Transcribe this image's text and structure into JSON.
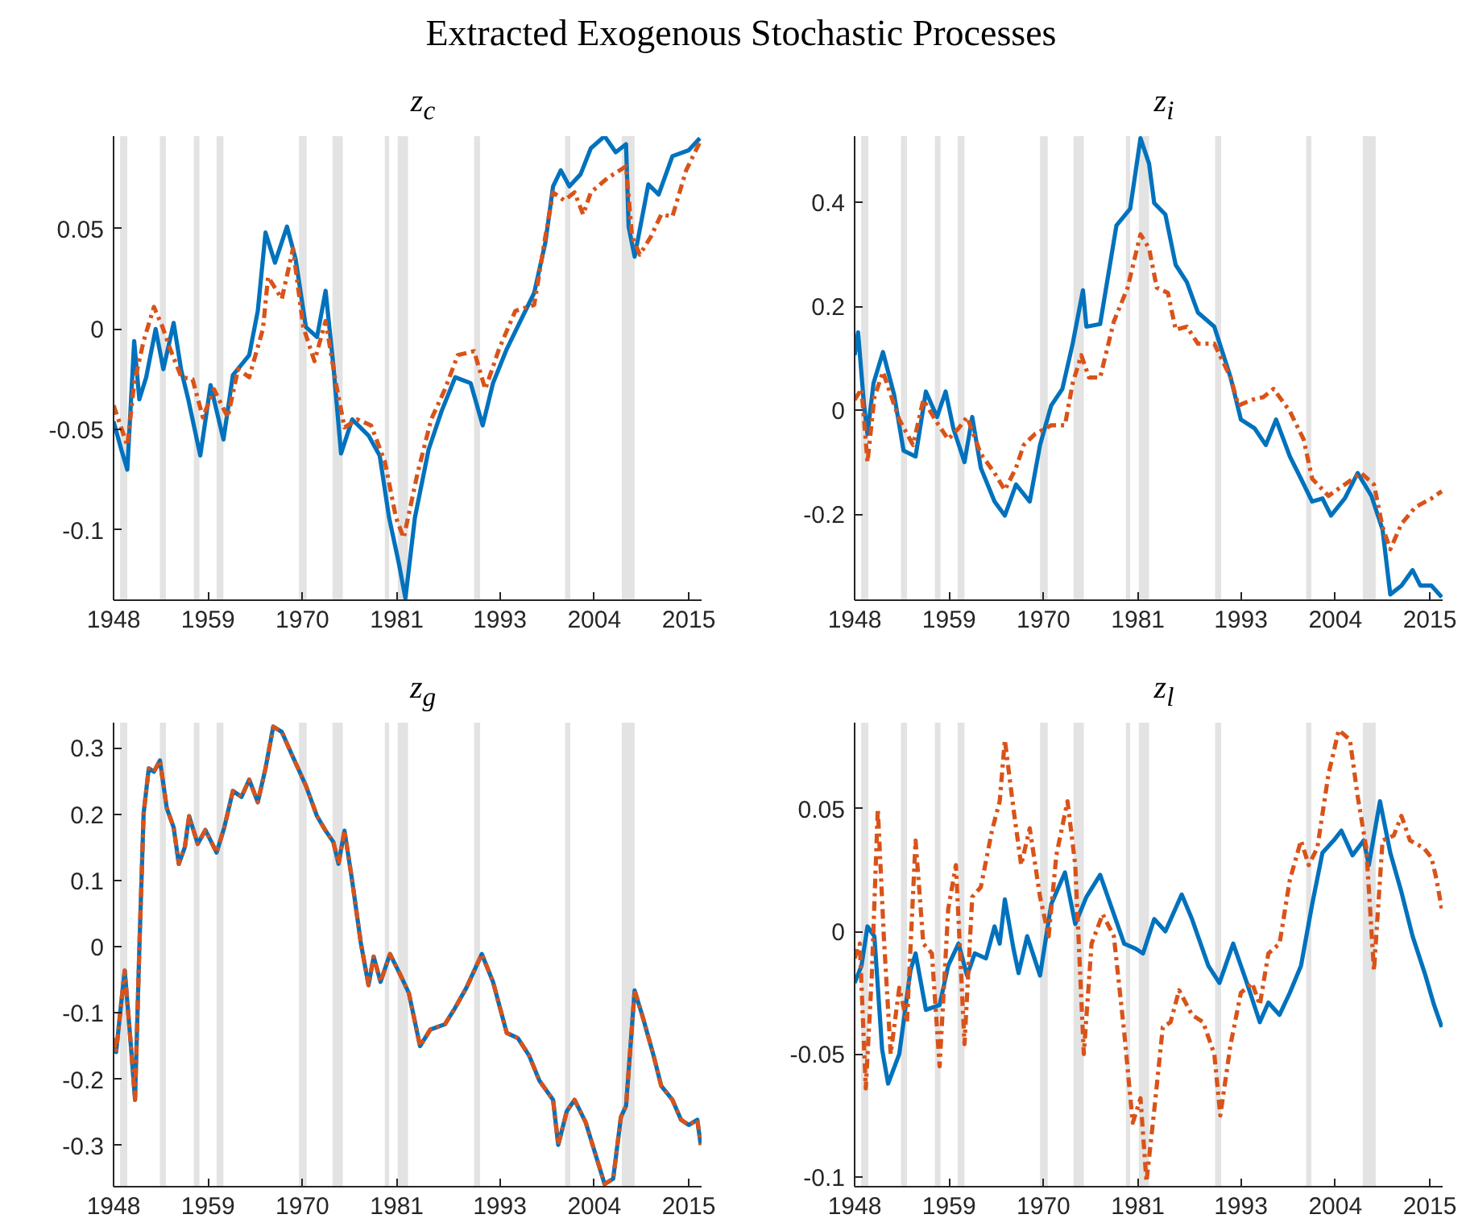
{
  "chart_data": [
    {
      "type": "line",
      "title": "z$_{c}$",
      "annotations": [
        "Extracted Exogenous Stochastic Processes"
      ],
      "xlim": [
        1948,
        2016.5
      ],
      "xticks": [
        1948,
        1959,
        1970,
        1981,
        1993,
        2004,
        2015
      ],
      "ylim": [
        -0.135,
        0.096
      ],
      "yticks": [
        -0.1,
        -0.05,
        0,
        0.05
      ],
      "grid": false,
      "marker": "none",
      "bands": [
        {
          "axis": "x",
          "from": 1948.76,
          "to": 1949.6,
          "color": "#e3e3e3"
        },
        {
          "axis": "x",
          "from": 1953.4,
          "to": 1954.1,
          "color": "#e3e3e3"
        },
        {
          "axis": "x",
          "from": 1957.35,
          "to": 1958.0,
          "color": "#e3e3e3"
        },
        {
          "axis": "x",
          "from": 1960.0,
          "to": 1960.8,
          "color": "#e3e3e3"
        },
        {
          "axis": "x",
          "from": 1969.6,
          "to": 1970.5,
          "color": "#e3e3e3"
        },
        {
          "axis": "x",
          "from": 1973.5,
          "to": 1974.7,
          "color": "#e3e3e3"
        },
        {
          "axis": "x",
          "from": 1979.6,
          "to": 1980.1,
          "color": "#e3e3e3"
        },
        {
          "axis": "x",
          "from": 1981.1,
          "to": 1982.3,
          "color": "#e3e3e3"
        },
        {
          "axis": "x",
          "from": 1990.0,
          "to": 1990.7,
          "color": "#e3e3e3"
        },
        {
          "axis": "x",
          "from": 2000.6,
          "to": 2001.2,
          "color": "#e3e3e3"
        },
        {
          "axis": "x",
          "from": 2007.2,
          "to": 2008.7,
          "color": "#e3e3e3"
        }
      ],
      "series": [
        {
          "color": "#0072bd",
          "line_style": "solid",
          "x": [
            1948,
            1948.9,
            1949.6,
            1950.4,
            1951.0,
            1951.8,
            1952.9,
            1953.8,
            1955.0,
            1955.9,
            1956.7,
            1958.1,
            1959.3,
            1960.8,
            1961.9,
            1963.8,
            1964.8,
            1965.7,
            1966.8,
            1968.2,
            1969.2,
            1970.4,
            1971.7,
            1972.7,
            1973.6,
            1974.5,
            1975.8,
            1977.7,
            1979.0,
            1980.1,
            1981.2,
            1982.0,
            1983.1,
            1984.7,
            1986.2,
            1987.8,
            1989.6,
            1991.0,
            1992.2,
            1993.8,
            1995.4,
            1997.0,
            1998.3,
            1999.2,
            2000.1,
            2001.1,
            2002.4,
            2003.6,
            2005.2,
            2006.5,
            2007.7,
            2008.0,
            2008.7,
            2010.3,
            2011.5,
            2013.1,
            2015.0,
            2016.3
          ],
          "values": [
            -0.046,
            -0.06,
            -0.07,
            -0.006,
            -0.035,
            -0.024,
            0.0,
            -0.02,
            0.003,
            -0.021,
            -0.035,
            -0.063,
            -0.028,
            -0.055,
            -0.023,
            -0.013,
            0.009,
            0.048,
            0.033,
            0.051,
            0.035,
            0.001,
            -0.004,
            0.019,
            -0.018,
            -0.062,
            -0.045,
            -0.053,
            -0.063,
            -0.094,
            -0.116,
            -0.134,
            -0.094,
            -0.06,
            -0.041,
            -0.024,
            -0.027,
            -0.048,
            -0.027,
            -0.01,
            0.004,
            0.018,
            0.043,
            0.071,
            0.079,
            0.071,
            0.077,
            0.09,
            0.096,
            0.088,
            0.092,
            0.051,
            0.036,
            0.072,
            0.067,
            0.086,
            0.089,
            0.095
          ]
        },
        {
          "color": "#d95319",
          "line_style": "dashed",
          "x": [
            1948,
            1949.6,
            1950.4,
            1951.5,
            1952.7,
            1953.7,
            1954.6,
            1955.9,
            1957.2,
            1958.4,
            1959.7,
            1961.3,
            1962.5,
            1963.8,
            1965.4,
            1966.0,
            1967.6,
            1968.9,
            1970.1,
            1971.4,
            1972.7,
            1973.9,
            1974.9,
            1976.4,
            1978.0,
            1979.6,
            1980.9,
            1981.8,
            1983.4,
            1985.0,
            1986.6,
            1988.1,
            1990.0,
            1991.3,
            1992.9,
            1994.8,
            1997.0,
            1998.3,
            1999.2,
            2000.5,
            2001.7,
            2002.7,
            2003.6,
            2005.5,
            2007.7,
            2008.4,
            2009.3,
            2010.6,
            2011.8,
            2013.1,
            2014.7,
            2016.3
          ],
          "values": [
            -0.038,
            -0.058,
            -0.027,
            -0.006,
            0.011,
            0.001,
            -0.01,
            -0.024,
            -0.025,
            -0.044,
            -0.03,
            -0.044,
            -0.02,
            -0.024,
            0.0,
            0.026,
            0.015,
            0.04,
            0.001,
            -0.016,
            0.004,
            -0.027,
            -0.049,
            -0.045,
            -0.048,
            -0.066,
            -0.094,
            -0.104,
            -0.072,
            -0.045,
            -0.03,
            -0.013,
            -0.011,
            -0.03,
            -0.01,
            0.009,
            0.012,
            0.046,
            0.068,
            0.064,
            0.068,
            0.057,
            0.068,
            0.075,
            0.081,
            0.046,
            0.037,
            0.046,
            0.057,
            0.056,
            0.079,
            0.093
          ]
        }
      ]
    },
    {
      "type": "line",
      "title": "z$_{i}$",
      "xlim": [
        1948,
        2016.5
      ],
      "xticks": [
        1948,
        1959,
        1970,
        1981,
        1993,
        2004,
        2015
      ],
      "ylim": [
        -0.366,
        0.528
      ],
      "yticks": [
        -0.2,
        0,
        0.2,
        0.4
      ],
      "grid": false,
      "marker": "none",
      "bands": [
        {
          "axis": "x",
          "from": 1948.76,
          "to": 1949.6,
          "color": "#e3e3e3"
        },
        {
          "axis": "x",
          "from": 1953.4,
          "to": 1954.1,
          "color": "#e3e3e3"
        },
        {
          "axis": "x",
          "from": 1957.35,
          "to": 1958.0,
          "color": "#e3e3e3"
        },
        {
          "axis": "x",
          "from": 1960.0,
          "to": 1960.8,
          "color": "#e3e3e3"
        },
        {
          "axis": "x",
          "from": 1969.6,
          "to": 1970.5,
          "color": "#e3e3e3"
        },
        {
          "axis": "x",
          "from": 1973.5,
          "to": 1974.7,
          "color": "#e3e3e3"
        },
        {
          "axis": "x",
          "from": 1979.6,
          "to": 1980.1,
          "color": "#e3e3e3"
        },
        {
          "axis": "x",
          "from": 1981.1,
          "to": 1982.3,
          "color": "#e3e3e3"
        },
        {
          "axis": "x",
          "from": 1990.0,
          "to": 1990.7,
          "color": "#e3e3e3"
        },
        {
          "axis": "x",
          "from": 2000.6,
          "to": 2001.2,
          "color": "#e3e3e3"
        },
        {
          "axis": "x",
          "from": 2007.2,
          "to": 2008.7,
          "color": "#e3e3e3"
        }
      ],
      "series": [
        {
          "color": "#0072bd",
          "line_style": "solid",
          "x": [
            1948,
            1948.4,
            1949.1,
            1949.5,
            1950.2,
            1951.3,
            1952.6,
            1953.7,
            1955.1,
            1956.3,
            1957.6,
            1958.6,
            1959.5,
            1960.8,
            1961.7,
            1962.7,
            1964.3,
            1965.5,
            1966.8,
            1968.4,
            1969.6,
            1970.9,
            1972.2,
            1973.4,
            1974.6,
            1975.0,
            1976.6,
            1978.5,
            1980.1,
            1981.3,
            1982.3,
            1982.9,
            1984.2,
            1985.4,
            1986.7,
            1988.0,
            1989.9,
            1991.8,
            1993.0,
            1994.6,
            1995.9,
            1997.1,
            1998.7,
            2000.0,
            2001.3,
            2002.5,
            2003.5,
            2005.1,
            2006.6,
            2008.2,
            2009.5,
            2010.4,
            2011.7,
            2013.0,
            2013.9,
            2015.2,
            2016.4
          ],
          "values": [
            0.106,
            0.15,
            0.009,
            -0.046,
            0.052,
            0.112,
            0.03,
            -0.078,
            -0.089,
            0.036,
            -0.013,
            0.036,
            -0.035,
            -0.1,
            -0.013,
            -0.111,
            -0.176,
            -0.203,
            -0.143,
            -0.176,
            -0.067,
            0.009,
            0.041,
            0.128,
            0.231,
            0.161,
            0.166,
            0.356,
            0.388,
            0.524,
            0.475,
            0.399,
            0.377,
            0.28,
            0.247,
            0.188,
            0.161,
            0.063,
            -0.018,
            -0.035,
            -0.067,
            -0.018,
            -0.089,
            -0.132,
            -0.176,
            -0.17,
            -0.203,
            -0.17,
            -0.121,
            -0.165,
            -0.23,
            -0.355,
            -0.338,
            -0.308,
            -0.338,
            -0.338,
            -0.36
          ]
        },
        {
          "color": "#d95319",
          "line_style": "dashed",
          "x": [
            1948,
            1948.8,
            1949.5,
            1950.3,
            1951.3,
            1952.2,
            1953.2,
            1954.8,
            1956.0,
            1957.6,
            1958.9,
            1960.1,
            1961.1,
            1962.7,
            1964.3,
            1965.5,
            1966.8,
            1967.7,
            1969.0,
            1970.9,
            1972.5,
            1973.4,
            1974.4,
            1975.3,
            1976.6,
            1978.2,
            1979.8,
            1981.3,
            1982.3,
            1983.2,
            1984.5,
            1985.4,
            1986.7,
            1988.0,
            1989.9,
            1991.8,
            1992.7,
            1994.3,
            1995.6,
            1996.8,
            1998.7,
            2000.3,
            2001.3,
            2003.2,
            2005.1,
            2007.0,
            2008.5,
            2009.5,
            2010.4,
            2011.7,
            2013.3,
            2015.2,
            2016.4
          ],
          "values": [
            0.02,
            0.041,
            -0.1,
            0.025,
            0.074,
            0.03,
            -0.018,
            -0.067,
            0.02,
            -0.024,
            -0.056,
            -0.035,
            -0.013,
            -0.084,
            -0.121,
            -0.154,
            -0.111,
            -0.067,
            -0.046,
            -0.029,
            -0.029,
            0.052,
            0.106,
            0.063,
            0.063,
            0.171,
            0.236,
            0.339,
            0.312,
            0.236,
            0.226,
            0.155,
            0.161,
            0.128,
            0.128,
            0.063,
            0.009,
            0.02,
            0.025,
            0.041,
            -0.002,
            -0.056,
            -0.132,
            -0.165,
            -0.143,
            -0.121,
            -0.143,
            -0.225,
            -0.268,
            -0.219,
            -0.187,
            -0.17,
            -0.156
          ]
        }
      ]
    },
    {
      "type": "line",
      "title": "z$_{g}$",
      "xlim": [
        1948,
        2016.5
      ],
      "xticks": [
        1948,
        1959,
        1970,
        1981,
        1993,
        2004,
        2015
      ],
      "ylim": [
        -0.362,
        0.338
      ],
      "yticks": [
        -0.3,
        -0.2,
        -0.1,
        0,
        0.1,
        0.2,
        0.3
      ],
      "grid": false,
      "marker": "none",
      "bands": [
        {
          "axis": "x",
          "from": 1948.76,
          "to": 1949.6,
          "color": "#e3e3e3"
        },
        {
          "axis": "x",
          "from": 1953.4,
          "to": 1954.1,
          "color": "#e3e3e3"
        },
        {
          "axis": "x",
          "from": 1957.35,
          "to": 1958.0,
          "color": "#e3e3e3"
        },
        {
          "axis": "x",
          "from": 1960.0,
          "to": 1960.8,
          "color": "#e3e3e3"
        },
        {
          "axis": "x",
          "from": 1969.6,
          "to": 1970.5,
          "color": "#e3e3e3"
        },
        {
          "axis": "x",
          "from": 1973.5,
          "to": 1974.7,
          "color": "#e3e3e3"
        },
        {
          "axis": "x",
          "from": 1979.6,
          "to": 1980.1,
          "color": "#e3e3e3"
        },
        {
          "axis": "x",
          "from": 1981.1,
          "to": 1982.3,
          "color": "#e3e3e3"
        },
        {
          "axis": "x",
          "from": 1990.0,
          "to": 1990.7,
          "color": "#e3e3e3"
        },
        {
          "axis": "x",
          "from": 2000.6,
          "to": 2001.2,
          "color": "#e3e3e3"
        },
        {
          "axis": "x",
          "from": 2007.2,
          "to": 2008.7,
          "color": "#e3e3e3"
        }
      ],
      "series": [
        {
          "color": "#0072bd",
          "line_style": "solid",
          "x": [
            1948,
            1948.3,
            1948.8,
            1949.3,
            1949.9,
            1950.5,
            1951.0,
            1951.5,
            1952.1,
            1952.7,
            1953.4,
            1954.2,
            1955.0,
            1955.6,
            1956.3,
            1956.8,
            1957.8,
            1958.7,
            1960.0,
            1960.9,
            1961.9,
            1962.9,
            1963.8,
            1964.8,
            1965.7,
            1966.6,
            1967.6,
            1968.9,
            1970.4,
            1971.7,
            1972.7,
            1973.6,
            1974.2,
            1974.9,
            1975.8,
            1976.8,
            1977.7,
            1978.3,
            1979.1,
            1980.2,
            1981.5,
            1982.4,
            1983.7,
            1984.9,
            1986.6,
            1987.8,
            1989.1,
            1990.9,
            1992.2,
            1993.8,
            1995.1,
            1996.4,
            1997.6,
            1999.2,
            1999.8,
            2000.8,
            2001.7,
            2003.0,
            2004.3,
            2005.2,
            2006.2,
            2007.1,
            2007.7,
            2008.7,
            2009.6,
            2010.9,
            2011.8,
            2013.1,
            2014.1,
            2015.0,
            2016.0,
            2016.4
          ],
          "values": [
            -0.138,
            -0.159,
            -0.096,
            -0.036,
            -0.13,
            -0.231,
            -0.003,
            0.201,
            0.269,
            0.264,
            0.281,
            0.209,
            0.18,
            0.125,
            0.15,
            0.197,
            0.155,
            0.176,
            0.142,
            0.18,
            0.235,
            0.226,
            0.252,
            0.218,
            0.269,
            0.332,
            0.324,
            0.286,
            0.243,
            0.197,
            0.175,
            0.158,
            0.125,
            0.175,
            0.099,
            0.006,
            -0.058,
            -0.015,
            -0.053,
            -0.011,
            -0.045,
            -0.07,
            -0.15,
            -0.125,
            -0.117,
            -0.092,
            -0.062,
            -0.011,
            -0.053,
            -0.13,
            -0.138,
            -0.164,
            -0.202,
            -0.231,
            -0.299,
            -0.248,
            -0.231,
            -0.265,
            -0.32,
            -0.358,
            -0.35,
            -0.257,
            -0.24,
            -0.066,
            -0.104,
            -0.164,
            -0.21,
            -0.231,
            -0.261,
            -0.269,
            -0.261,
            -0.299
          ]
        },
        {
          "color": "#d95319",
          "line_style": "dashed",
          "x": [
            1948,
            1948.3,
            1948.8,
            1949.3,
            1949.9,
            1950.5,
            1951.0,
            1951.5,
            1952.1,
            1952.7,
            1953.4,
            1954.2,
            1955.0,
            1955.6,
            1956.3,
            1956.8,
            1957.8,
            1958.7,
            1960.0,
            1960.9,
            1961.9,
            1962.9,
            1963.8,
            1964.8,
            1965.7,
            1966.6,
            1967.6,
            1968.9,
            1970.4,
            1971.7,
            1972.7,
            1973.6,
            1974.2,
            1974.9,
            1975.8,
            1976.8,
            1977.7,
            1978.3,
            1979.1,
            1980.2,
            1981.5,
            1982.4,
            1983.7,
            1984.9,
            1986.6,
            1987.8,
            1989.1,
            1990.9,
            1992.2,
            1993.8,
            1995.1,
            1996.4,
            1997.6,
            1999.2,
            1999.8,
            2000.8,
            2001.7,
            2003.0,
            2004.3,
            2005.2,
            2006.2,
            2007.1,
            2007.7,
            2008.7,
            2009.6,
            2010.9,
            2011.8,
            2013.1,
            2014.1,
            2015.0,
            2016.0,
            2016.4
          ],
          "values": [
            -0.138,
            -0.159,
            -0.096,
            -0.036,
            -0.13,
            -0.231,
            -0.003,
            0.201,
            0.269,
            0.264,
            0.281,
            0.209,
            0.18,
            0.125,
            0.15,
            0.197,
            0.155,
            0.176,
            0.142,
            0.18,
            0.235,
            0.226,
            0.252,
            0.218,
            0.269,
            0.332,
            0.324,
            0.286,
            0.243,
            0.197,
            0.175,
            0.158,
            0.125,
            0.175,
            0.099,
            0.006,
            -0.058,
            -0.015,
            -0.053,
            -0.011,
            -0.045,
            -0.07,
            -0.15,
            -0.125,
            -0.117,
            -0.092,
            -0.062,
            -0.011,
            -0.053,
            -0.13,
            -0.138,
            -0.164,
            -0.202,
            -0.231,
            -0.299,
            -0.248,
            -0.231,
            -0.265,
            -0.32,
            -0.358,
            -0.35,
            -0.257,
            -0.24,
            -0.066,
            -0.104,
            -0.164,
            -0.21,
            -0.231,
            -0.261,
            -0.269,
            -0.261,
            -0.299
          ]
        }
      ]
    },
    {
      "type": "line",
      "title": "z$_{l}$",
      "xlim": [
        1948,
        2016.5
      ],
      "xticks": [
        1948,
        1959,
        1970,
        1981,
        1993,
        2004,
        2015
      ],
      "ylim": [
        -0.104,
        0.085
      ],
      "yticks": [
        -0.1,
        -0.05,
        0,
        0.05
      ],
      "grid": false,
      "marker": "none",
      "bands": [
        {
          "axis": "x",
          "from": 1948.76,
          "to": 1949.6,
          "color": "#e3e3e3"
        },
        {
          "axis": "x",
          "from": 1953.4,
          "to": 1954.1,
          "color": "#e3e3e3"
        },
        {
          "axis": "x",
          "from": 1957.35,
          "to": 1958.0,
          "color": "#e3e3e3"
        },
        {
          "axis": "x",
          "from": 1960.0,
          "to": 1960.8,
          "color": "#e3e3e3"
        },
        {
          "axis": "x",
          "from": 1969.6,
          "to": 1970.5,
          "color": "#e3e3e3"
        },
        {
          "axis": "x",
          "from": 1973.5,
          "to": 1974.7,
          "color": "#e3e3e3"
        },
        {
          "axis": "x",
          "from": 1979.6,
          "to": 1980.1,
          "color": "#e3e3e3"
        },
        {
          "axis": "x",
          "from": 1981.1,
          "to": 1982.3,
          "color": "#e3e3e3"
        },
        {
          "axis": "x",
          "from": 1990.0,
          "to": 1990.7,
          "color": "#e3e3e3"
        },
        {
          "axis": "x",
          "from": 2000.6,
          "to": 2001.2,
          "color": "#e3e3e3"
        },
        {
          "axis": "x",
          "from": 2007.2,
          "to": 2008.7,
          "color": "#e3e3e3"
        }
      ],
      "series": [
        {
          "color": "#0072bd",
          "line_style": "solid",
          "x": [
            1948,
            1948.8,
            1949.5,
            1950.3,
            1951.2,
            1951.9,
            1953.2,
            1954.5,
            1955.1,
            1956.3,
            1957.9,
            1958.9,
            1960.1,
            1961.1,
            1962.0,
            1963.3,
            1964.3,
            1964.9,
            1965.5,
            1966.5,
            1967.1,
            1968.1,
            1969.6,
            1970.9,
            1972.5,
            1973.7,
            1975.0,
            1976.6,
            1977.9,
            1979.4,
            1980.7,
            1981.6,
            1982.9,
            1984.2,
            1986.1,
            1987.3,
            1989.2,
            1990.5,
            1992.1,
            1993.7,
            1995.2,
            1996.2,
            1997.5,
            1998.7,
            2000.0,
            2001.3,
            2002.5,
            2003.8,
            2004.7,
            2006.0,
            2007.3,
            2007.9,
            2009.2,
            2010.4,
            2011.7,
            2013.0,
            2014.5,
            2015.5,
            2016.4
          ],
          "values": [
            -0.021,
            -0.014,
            0.002,
            -0.002,
            -0.048,
            -0.062,
            -0.05,
            -0.016,
            -0.009,
            -0.032,
            -0.03,
            -0.014,
            -0.005,
            -0.018,
            -0.009,
            -0.011,
            0.002,
            -0.005,
            0.013,
            -0.007,
            -0.017,
            -0.002,
            -0.018,
            0.011,
            0.024,
            0.003,
            0.014,
            0.023,
            0.01,
            -0.005,
            -0.007,
            -0.009,
            0.005,
            0.0,
            0.015,
            0.005,
            -0.014,
            -0.021,
            -0.005,
            -0.021,
            -0.037,
            -0.029,
            -0.034,
            -0.025,
            -0.014,
            0.011,
            0.032,
            0.037,
            0.041,
            0.031,
            0.037,
            0.027,
            0.053,
            0.032,
            0.016,
            -0.002,
            -0.018,
            -0.03,
            -0.039
          ]
        },
        {
          "color": "#d95319",
          "line_style": "dashed",
          "x": [
            1948,
            1948.6,
            1949.3,
            1950.0,
            1950.7,
            1951.4,
            1952.2,
            1953.2,
            1954.1,
            1955.1,
            1956.0,
            1957.0,
            1957.9,
            1958.9,
            1959.8,
            1960.8,
            1961.7,
            1962.7,
            1964.0,
            1964.9,
            1965.5,
            1966.5,
            1967.4,
            1968.4,
            1969.6,
            1970.6,
            1971.5,
            1972.8,
            1973.7,
            1974.7,
            1975.6,
            1976.9,
            1978.2,
            1979.4,
            1980.4,
            1981.3,
            1982.0,
            1982.9,
            1983.9,
            1984.8,
            1985.8,
            1987.3,
            1988.6,
            1989.9,
            1990.6,
            1991.8,
            1993.0,
            1994.3,
            1995.2,
            1996.2,
            1997.5,
            1998.7,
            2000.0,
            2000.9,
            2001.9,
            2003.2,
            2004.4,
            2005.7,
            2006.6,
            2007.6,
            2008.5,
            2009.5,
            2010.8,
            2011.7,
            2012.7,
            2014.3,
            2015.2,
            2015.8,
            2016.4
          ],
          "values": [
            -0.011,
            -0.005,
            -0.064,
            -0.018,
            0.05,
            -0.002,
            -0.05,
            -0.023,
            -0.037,
            0.037,
            -0.005,
            -0.009,
            -0.055,
            0.009,
            0.027,
            -0.046,
            0.014,
            0.018,
            0.041,
            0.053,
            0.078,
            0.05,
            0.027,
            0.042,
            0.014,
            -0.002,
            0.031,
            0.053,
            0.027,
            -0.05,
            -0.005,
            0.007,
            -0.002,
            -0.041,
            -0.078,
            -0.068,
            -0.102,
            -0.073,
            -0.039,
            -0.037,
            -0.024,
            -0.034,
            -0.037,
            -0.05,
            -0.075,
            -0.046,
            -0.025,
            -0.021,
            -0.03,
            -0.009,
            -0.005,
            0.021,
            0.037,
            0.027,
            0.034,
            0.064,
            0.082,
            0.078,
            0.055,
            0.034,
            -0.016,
            0.037,
            0.039,
            0.047,
            0.037,
            0.034,
            0.03,
            0.021,
            0.009
          ]
        }
      ]
    }
  ]
}
